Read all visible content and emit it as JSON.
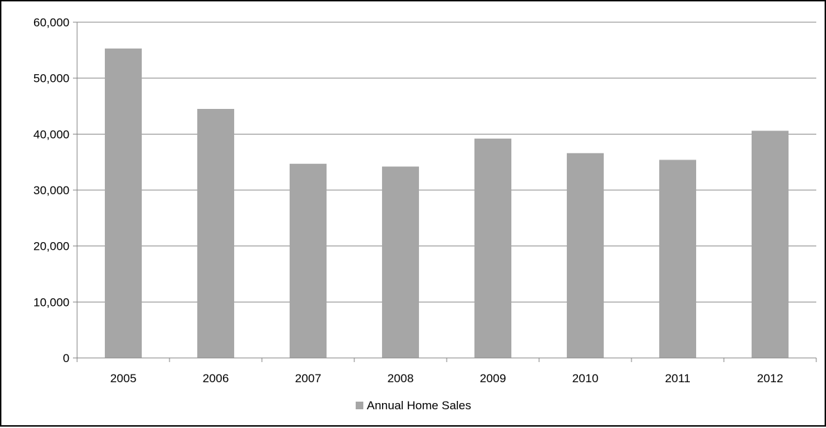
{
  "chart_data": {
    "type": "bar",
    "categories": [
      "2005",
      "2006",
      "2007",
      "2008",
      "2009",
      "2010",
      "2011",
      "2012"
    ],
    "series": [
      {
        "name": "Annual Home Sales",
        "color": "#a6a6a6",
        "values": [
          55300,
          44500,
          34700,
          34200,
          39200,
          36600,
          35400,
          40600
        ]
      }
    ],
    "title": "",
    "xlabel": "",
    "ylabel": "",
    "ylim": [
      0,
      60000
    ],
    "yticks": [
      "0",
      "10,000",
      "20,000",
      "30,000",
      "40,000",
      "50,000",
      "60,000"
    ],
    "grid": true,
    "legend_position": "bottom",
    "colors": {
      "bar": "#a6a6a6",
      "grid": "#868686",
      "axis": "#868686",
      "border": "#000000"
    }
  }
}
